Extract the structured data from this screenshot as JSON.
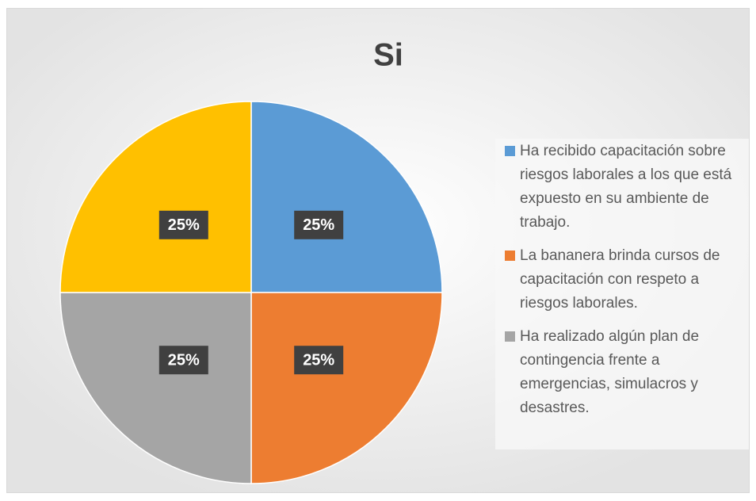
{
  "chart_data": {
    "type": "pie",
    "title": "Si",
    "categories": [
      "Ha recibido capacitación sobre riesgos laborales a los que está expuesto en su ambiente de trabajo.",
      "La bananera brinda cursos de capacitación con respeto a riesgos laborales.",
      "Ha realizado algún plan de contingencia frente a emergencias, simulacros y desastres.",
      null
    ],
    "values": [
      25,
      25,
      25,
      25
    ],
    "value_labels": [
      "25%",
      "25%",
      "25%",
      "25%"
    ],
    "colors": [
      "#5b9bd5",
      "#ed7d31",
      "#a5a5a5",
      "#ffc000"
    ],
    "legend": "right"
  }
}
